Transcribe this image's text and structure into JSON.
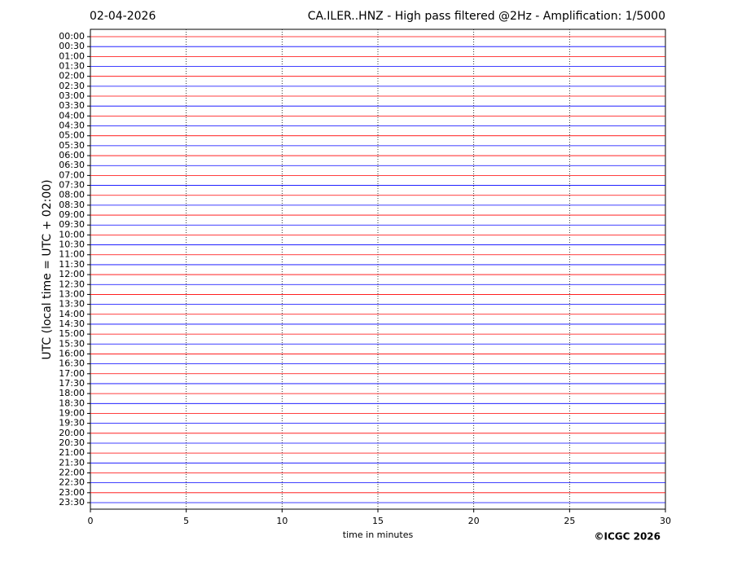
{
  "chart_data": {
    "type": "helicorder",
    "date": "02-04-2026",
    "title": "CA.ILER..HNZ - High pass filtered @2Hz - Amplification: 1/5000",
    "ylabel": "UTC (local time = UTC + 02:00)",
    "xlabel": "time in minutes",
    "copyright": "©ICGC 2026",
    "categories": [
      "00:00",
      "00:30",
      "01:00",
      "01:30",
      "02:00",
      "02:30",
      "03:00",
      "03:30",
      "04:00",
      "04:30",
      "05:00",
      "05:30",
      "06:00",
      "06:30",
      "07:00",
      "07:30",
      "08:00",
      "08:30",
      "09:00",
      "09:30",
      "10:00",
      "10:30",
      "11:00",
      "11:30",
      "12:00",
      "12:30",
      "13:00",
      "13:30",
      "14:00",
      "14:30",
      "15:00",
      "15:30",
      "16:00",
      "16:30",
      "17:00",
      "17:30",
      "18:00",
      "18:30",
      "19:00",
      "19:30",
      "20:00",
      "20:30",
      "21:00",
      "21:30",
      "22:00",
      "22:30",
      "23:00",
      "23:30"
    ],
    "colors": [
      "#ff0000",
      "#0000ff"
    ],
    "xlim": [
      0,
      30
    ],
    "xticks": [
      0,
      5,
      10,
      15,
      20,
      25,
      30
    ],
    "grid": true
  }
}
